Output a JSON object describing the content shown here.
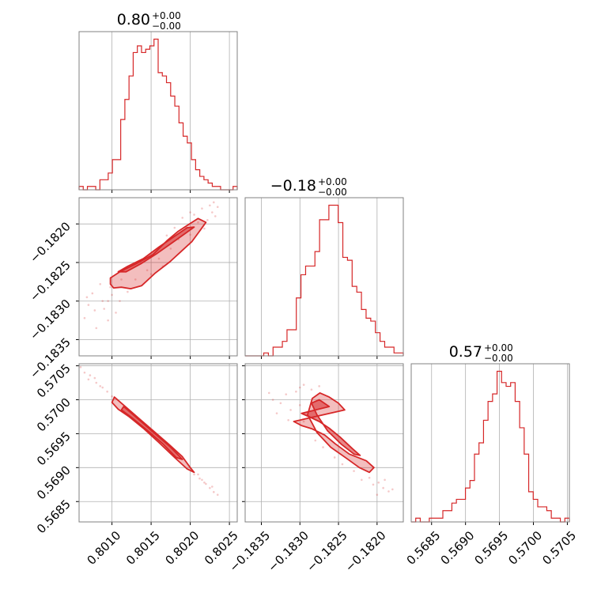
{
  "style": {
    "accent": "#d62728",
    "frame": "#808080",
    "grid": "#b0b0b0"
  },
  "chart_data": {
    "type": "corner",
    "grid": true,
    "parameters": [
      {
        "range": [
          0.80058,
          0.8026
        ],
        "ticks": [
          0.801,
          0.8015,
          0.802,
          0.8025
        ],
        "tick_labels": [
          "0.8010",
          "0.8015",
          "0.8020",
          "0.8025"
        ],
        "title": {
          "value": "0.80",
          "upper": "+0.00",
          "lower": "−0.00"
        },
        "histogram": [
          1,
          0,
          1,
          1,
          0,
          3,
          3,
          5,
          9,
          9,
          21,
          27,
          34,
          41,
          43,
          41,
          42,
          43,
          45,
          35,
          34,
          32,
          28,
          25,
          20,
          16,
          14,
          9,
          6,
          4,
          3,
          2,
          1,
          1,
          0,
          0,
          0,
          1
        ]
      },
      {
        "range": [
          -0.18371,
          -0.18166
        ],
        "ticks": [
          -0.1835,
          -0.183,
          -0.1825,
          -0.182
        ],
        "tick_labels": [
          "−0.1835",
          "−0.1830",
          "−0.1825",
          "−0.1820"
        ],
        "title": {
          "value": "−0.18",
          "upper": "+0.00",
          "lower": "−0.00"
        },
        "histogram": [
          0,
          0,
          0,
          0,
          1,
          0,
          3,
          3,
          5,
          9,
          9,
          20,
          28,
          31,
          31,
          36,
          47,
          47,
          52,
          52,
          46,
          34,
          33,
          24,
          22,
          16,
          13,
          12,
          8,
          5,
          3,
          3,
          1,
          1
        ]
      },
      {
        "range": [
          0.5682,
          0.57053
        ],
        "ticks": [
          0.5685,
          0.569,
          0.5695,
          0.57,
          0.5705
        ],
        "tick_labels": [
          "0.5685",
          "0.5690",
          "0.5695",
          "0.5700",
          "0.5705"
        ],
        "title": {
          "value": "0.57",
          "upper": "+0.00",
          "lower": "−0.00"
        },
        "histogram": [
          0,
          1,
          0,
          0,
          1,
          1,
          1,
          3,
          3,
          5,
          6,
          6,
          9,
          11,
          18,
          21,
          27,
          32,
          34,
          40,
          37,
          36,
          37,
          32,
          25,
          18,
          8,
          6,
          4,
          4,
          3,
          1,
          1,
          0,
          1
        ]
      }
    ],
    "pairs": [
      {
        "x_param": 0,
        "y_param": 1,
        "contour_outer": [
          [
            0.80138,
            -0.1828
          ],
          [
            0.80155,
            -0.18264
          ],
          [
            0.80174,
            -0.18249
          ],
          [
            0.80188,
            -0.18236
          ],
          [
            0.80202,
            -0.18223
          ],
          [
            0.8021,
            -0.18212
          ],
          [
            0.8022,
            -0.18198
          ],
          [
            0.8021,
            -0.18193
          ],
          [
            0.80196,
            -0.18202
          ],
          [
            0.80184,
            -0.1821
          ],
          [
            0.8017,
            -0.18222
          ],
          [
            0.80152,
            -0.1824
          ],
          [
            0.8013,
            -0.18252
          ],
          [
            0.8011,
            -0.18262
          ],
          [
            0.80098,
            -0.1827
          ],
          [
            0.80098,
            -0.18278
          ],
          [
            0.80102,
            -0.18283
          ],
          [
            0.80112,
            -0.18282
          ],
          [
            0.80124,
            -0.18284
          ]
        ],
        "contour_inner": [
          [
            0.80118,
            -0.18262
          ],
          [
            0.80138,
            -0.18251
          ],
          [
            0.80158,
            -0.18238
          ],
          [
            0.80176,
            -0.18225
          ],
          [
            0.80194,
            -0.18212
          ],
          [
            0.80205,
            -0.18204
          ],
          [
            0.80196,
            -0.18205
          ],
          [
            0.8018,
            -0.18216
          ],
          [
            0.8016,
            -0.1823
          ],
          [
            0.8014,
            -0.18245
          ],
          [
            0.8012,
            -0.18255
          ],
          [
            0.80108,
            -0.18262
          ]
        ],
        "scatter": [
          [
            0.80065,
            -0.18322
          ],
          [
            0.8008,
            -0.18335
          ],
          [
            0.8009,
            -0.1831
          ],
          [
            0.80075,
            -0.1829
          ],
          [
            0.80095,
            -0.183
          ],
          [
            0.80085,
            -0.18278
          ],
          [
            0.801,
            -0.18292
          ],
          [
            0.8011,
            -0.183
          ],
          [
            0.8007,
            -0.18305
          ],
          [
            0.8012,
            -0.18288
          ],
          [
            0.80105,
            -0.18315
          ],
          [
            0.80095,
            -0.18325
          ],
          [
            0.8013,
            -0.18272
          ],
          [
            0.80205,
            -0.18188
          ],
          [
            0.80215,
            -0.1818
          ],
          [
            0.80225,
            -0.18176
          ],
          [
            0.80228,
            -0.18185
          ],
          [
            0.80222,
            -0.18195
          ],
          [
            0.8021,
            -0.18198
          ],
          [
            0.80232,
            -0.1819
          ],
          [
            0.80235,
            -0.18178
          ],
          [
            0.80195,
            -0.18205
          ],
          [
            0.802,
            -0.18214
          ],
          [
            0.80185,
            -0.1822
          ],
          [
            0.8023,
            -0.18172
          ],
          [
            0.80218,
            -0.18206
          ],
          [
            0.80175,
            -0.18232
          ],
          [
            0.8016,
            -0.18245
          ],
          [
            0.80145,
            -0.1826
          ],
          [
            0.80098,
            -0.18282
          ],
          [
            0.80088,
            -0.183
          ],
          [
            0.80078,
            -0.18312
          ],
          [
            0.80068,
            -0.18295
          ],
          [
            0.8015,
            -0.18265
          ],
          [
            0.80165,
            -0.18255
          ],
          [
            0.80112,
            -0.18272
          ],
          [
            0.802,
            -0.18185
          ],
          [
            0.8019,
            -0.18192
          ],
          [
            0.8018,
            -0.18205
          ],
          [
            0.8017,
            -0.18215
          ]
        ]
      },
      {
        "x_param": 0,
        "y_param": 2,
        "contour_outer": [
          [
            0.80103,
            0.57004
          ],
          [
            0.80118,
            0.56989
          ],
          [
            0.80135,
            0.56972
          ],
          [
            0.80155,
            0.56952
          ],
          [
            0.80172,
            0.56935
          ],
          [
            0.8019,
            0.56916
          ],
          [
            0.802,
            0.569
          ],
          [
            0.80205,
            0.56893
          ],
          [
            0.80196,
            0.56898
          ],
          [
            0.8018,
            0.56915
          ],
          [
            0.8016,
            0.56937
          ],
          [
            0.8014,
            0.56958
          ],
          [
            0.80122,
            0.56975
          ],
          [
            0.80108,
            0.56986
          ],
          [
            0.801,
            0.56996
          ]
        ],
        "contour_inner": [
          [
            0.80115,
            0.5699
          ],
          [
            0.80135,
            0.5697
          ],
          [
            0.80155,
            0.5695
          ],
          [
            0.80175,
            0.5693
          ],
          [
            0.8019,
            0.56912
          ],
          [
            0.80182,
            0.56915
          ],
          [
            0.80165,
            0.56935
          ],
          [
            0.80145,
            0.56955
          ],
          [
            0.80125,
            0.56974
          ],
          [
            0.80112,
            0.56985
          ]
        ],
        "scatter": [
          [
            0.8006,
            0.57048
          ],
          [
            0.80065,
            0.5704
          ],
          [
            0.80072,
            0.57036
          ],
          [
            0.8008,
            0.57025
          ],
          [
            0.80088,
            0.57018
          ],
          [
            0.80094,
            0.57012
          ],
          [
            0.801,
            0.57005
          ],
          [
            0.8007,
            0.5703
          ],
          [
            0.80078,
            0.57032
          ],
          [
            0.80085,
            0.5702
          ],
          [
            0.8021,
            0.5689
          ],
          [
            0.80215,
            0.56882
          ],
          [
            0.8022,
            0.56876
          ],
          [
            0.80225,
            0.5687
          ],
          [
            0.8023,
            0.56864
          ],
          [
            0.80235,
            0.5686
          ],
          [
            0.80228,
            0.56872
          ],
          [
            0.80212,
            0.56884
          ],
          [
            0.80205,
            0.5689
          ],
          [
            0.80218,
            0.56878
          ]
        ]
      },
      {
        "x_param": 1,
        "y_param": 2,
        "contour_outer": [
          [
            -0.18308,
            0.56968
          ],
          [
            -0.18298,
            0.56962
          ],
          [
            -0.18284,
            0.56957
          ],
          [
            -0.18268,
            0.56948
          ],
          [
            -0.18254,
            0.56935
          ],
          [
            -0.18236,
            0.5692
          ],
          [
            -0.18214,
            0.5691
          ],
          [
            -0.18204,
            0.569
          ],
          [
            -0.1821,
            0.56893
          ],
          [
            -0.18223,
            0.569
          ],
          [
            -0.1824,
            0.56914
          ],
          [
            -0.1826,
            0.5693
          ],
          [
            -0.18278,
            0.56952
          ],
          [
            -0.1829,
            0.56978
          ],
          [
            -0.18284,
            0.57002
          ],
          [
            -0.18274,
            0.5701
          ],
          [
            -0.18262,
            0.57004
          ],
          [
            -0.1825,
            0.56995
          ],
          [
            -0.18242,
            0.56985
          ]
        ],
        "contour_inner": [
          [
            -0.18298,
            0.5698
          ],
          [
            -0.18288,
            0.56975
          ],
          [
            -0.18275,
            0.56968
          ],
          [
            -0.18262,
            0.56958
          ],
          [
            -0.18248,
            0.56945
          ],
          [
            -0.18232,
            0.56928
          ],
          [
            -0.18222,
            0.56918
          ],
          [
            -0.1823,
            0.5692
          ],
          [
            -0.18246,
            0.56934
          ],
          [
            -0.18264,
            0.56954
          ],
          [
            -0.18278,
            0.56978
          ],
          [
            -0.18285,
            0.56995
          ],
          [
            -0.18275,
            0.57
          ],
          [
            -0.18262,
            0.5699
          ]
        ],
        "scatter": [
          [
            -0.1834,
            0.5701
          ],
          [
            -0.18335,
            0.57
          ],
          [
            -0.18325,
            0.56995
          ],
          [
            -0.18318,
            0.57008
          ],
          [
            -0.18312,
            0.56985
          ],
          [
            -0.1833,
            0.5698
          ],
          [
            -0.18305,
            0.57012
          ],
          [
            -0.183,
            0.57018
          ],
          [
            -0.18295,
            0.57022
          ],
          [
            -0.18285,
            0.57015
          ],
          [
            -0.18275,
            0.5702
          ],
          [
            -0.183,
            0.56992
          ],
          [
            -0.18295,
            0.56968
          ],
          [
            -0.18315,
            0.5697
          ],
          [
            -0.18198,
            0.56878
          ],
          [
            -0.18192,
            0.5687
          ],
          [
            -0.18185,
            0.56865
          ],
          [
            -0.182,
            0.5686
          ],
          [
            -0.18205,
            0.56875
          ],
          [
            -0.1821,
            0.56885
          ],
          [
            -0.1819,
            0.56882
          ],
          [
            -0.1818,
            0.56868
          ],
          [
            -0.1822,
            0.56882
          ],
          [
            -0.1823,
            0.56895
          ],
          [
            -0.18245,
            0.56905
          ],
          [
            -0.18255,
            0.56915
          ],
          [
            -0.1827,
            0.5693
          ],
          [
            -0.1828,
            0.5694
          ]
        ]
      }
    ]
  }
}
